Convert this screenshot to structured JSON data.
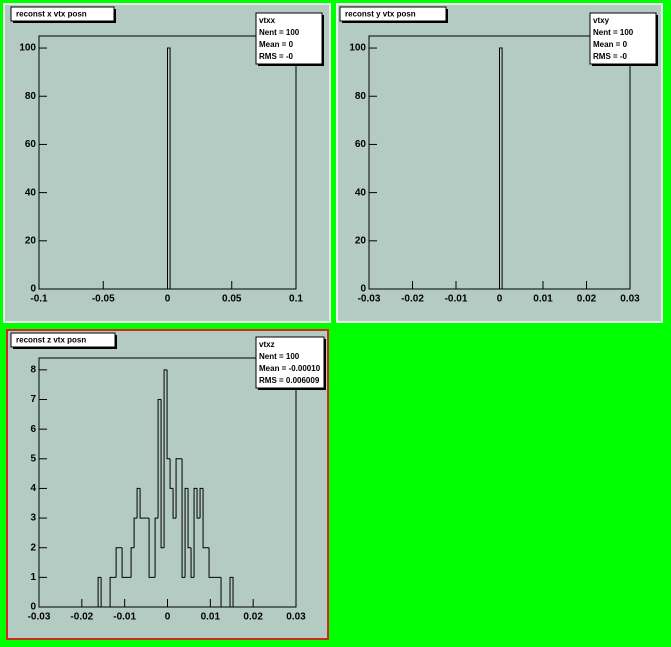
{
  "chart_data": [
    {
      "type": "histogram",
      "title": "reconst x vtx posn",
      "bins": [
        0,
        0.002
      ],
      "counts": [
        100
      ],
      "xlim": [
        -0.1,
        0.1
      ],
      "ylim": [
        0,
        105
      ],
      "xticks": [
        -0.1,
        -0.05,
        0,
        0.05,
        0.1
      ],
      "yticks": [
        0,
        20,
        40,
        60,
        80,
        100
      ],
      "stats": [
        "vtxx",
        "Nent = 100",
        "Mean = 0",
        "RMS = -0"
      ]
    },
    {
      "type": "histogram",
      "title": "reconst y vtx posn",
      "bins": [
        0,
        0.0006
      ],
      "counts": [
        100
      ],
      "xlim": [
        -0.03,
        0.03
      ],
      "ylim": [
        0,
        105
      ],
      "xticks": [
        -0.03,
        -0.02,
        -0.01,
        0,
        0.01,
        0.02,
        0.03
      ],
      "yticks": [
        0,
        20,
        40,
        60,
        80,
        100
      ],
      "stats": [
        "vtxy",
        "Nent = 100",
        "Mean = 0",
        "RMS = -0"
      ]
    },
    {
      "type": "histogram",
      "title": "reconst z vtx posn",
      "bins": [
        -0.0162,
        -0.0155,
        -0.0148,
        -0.0141,
        -0.0134,
        -0.0127,
        -0.012,
        -0.0113,
        -0.0106,
        -0.0099,
        -0.0092,
        -0.0085,
        -0.0078,
        -0.0071,
        -0.0064,
        -0.0057,
        -0.005,
        -0.0043,
        -0.0036,
        -0.0029,
        -0.0022,
        -0.0015,
        -0.0008,
        -0.0001,
        0.0006,
        0.0013,
        0.002,
        0.0027,
        0.0034,
        0.0041,
        0.0048,
        0.0055,
        0.0062,
        0.0069,
        0.0076,
        0.0083,
        0.009,
        0.0097,
        0.0104,
        0.0111,
        0.0118,
        0.0125,
        0.0132,
        0.0139,
        0.0146,
        0.0153
      ],
      "counts": [
        1,
        0,
        0,
        0,
        1,
        1,
        2,
        2,
        1,
        1,
        1,
        2,
        3,
        4,
        3,
        3,
        3,
        1,
        1,
        3,
        7,
        2,
        8,
        5,
        4,
        3,
        5,
        5,
        1,
        4,
        2,
        1,
        4,
        3,
        4,
        2,
        2,
        1,
        1,
        1,
        1,
        0,
        0,
        0,
        1
      ],
      "xlim": [
        -0.03,
        0.03
      ],
      "ylim": [
        0,
        8.4
      ],
      "xticks": [
        -0.03,
        -0.02,
        -0.01,
        0,
        0.01,
        0.02,
        0.03
      ],
      "yticks": [
        0,
        1,
        2,
        3,
        4,
        5,
        6,
        7,
        8
      ],
      "stats": [
        "vtxz",
        "Nent = 100",
        "Mean = -0.00010",
        "RMS = 0.006009"
      ]
    }
  ]
}
